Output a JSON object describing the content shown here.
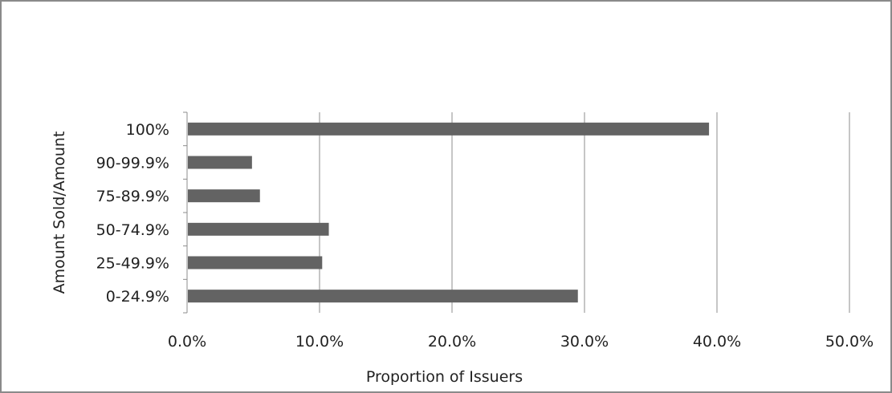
{
  "chart_data": {
    "type": "bar",
    "orientation": "horizontal",
    "title": "",
    "xlabel": "Proportion  of Issuers",
    "ylabel": "Amount Sold/Amount",
    "categories": [
      "0-24.9%",
      "25-49.9%",
      "50-74.9%",
      "75-89.9%",
      "90-99.9%",
      "100%"
    ],
    "values": [
      29.5,
      10.2,
      10.7,
      5.5,
      4.9,
      39.4
    ],
    "value_unit": "percent",
    "xlim": [
      0,
      50
    ],
    "x_tick_labels": [
      "0.0%",
      "10.0%",
      "20.0%",
      "30.0%",
      "40.0%",
      "50.0%"
    ],
    "grid": "vertical",
    "legend": "none",
    "bar_color": "#636363"
  }
}
